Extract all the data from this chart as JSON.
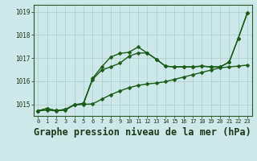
{
  "title": "Graphe pression niveau de la mer (hPa)",
  "x_labels": [
    "0",
    "1",
    "2",
    "3",
    "4",
    "5",
    "6",
    "7",
    "8",
    "9",
    "10",
    "11",
    "12",
    "13",
    "14",
    "15",
    "16",
    "17",
    "18",
    "19",
    "20",
    "21",
    "22",
    "23"
  ],
  "ylim": [
    1014.5,
    1019.3
  ],
  "yticks": [
    1015,
    1016,
    1017,
    1018,
    1019
  ],
  "bg_color": "#cce8e8",
  "grid_color": "#aacccc",
  "line_color": "#1a5c1a",
  "line1": [
    1014.72,
    1014.82,
    1014.73,
    1014.78,
    1014.98,
    1015.02,
    1016.08,
    1016.48,
    1016.62,
    1016.78,
    1017.08,
    1017.22,
    1017.22,
    1016.95,
    1016.65,
    1016.62,
    1016.62,
    1016.62,
    1016.65,
    1016.62,
    1016.62,
    1016.82,
    1017.85,
    1018.95
  ],
  "line2": [
    1014.72,
    1014.75,
    1014.72,
    1014.75,
    1014.98,
    1015.0,
    1015.02,
    1015.22,
    1015.42,
    1015.58,
    1015.72,
    1015.82,
    1015.88,
    1015.92,
    1015.98,
    1016.08,
    1016.18,
    1016.28,
    1016.38,
    1016.48,
    1016.58,
    1016.62,
    1016.65,
    1016.7
  ],
  "line3": [
    1014.72,
    1014.82,
    1014.73,
    1014.78,
    1014.98,
    1015.05,
    1016.12,
    1016.62,
    1017.05,
    1017.2,
    1017.25,
    1017.48,
    1017.22,
    1016.95,
    1016.65,
    1016.62,
    1016.62,
    1016.62,
    1016.65,
    1016.62,
    1016.62,
    1016.82,
    1017.85,
    1018.95
  ],
  "marker_size": 2.5,
  "linewidth": 1.0,
  "title_fontsize": 8.5
}
